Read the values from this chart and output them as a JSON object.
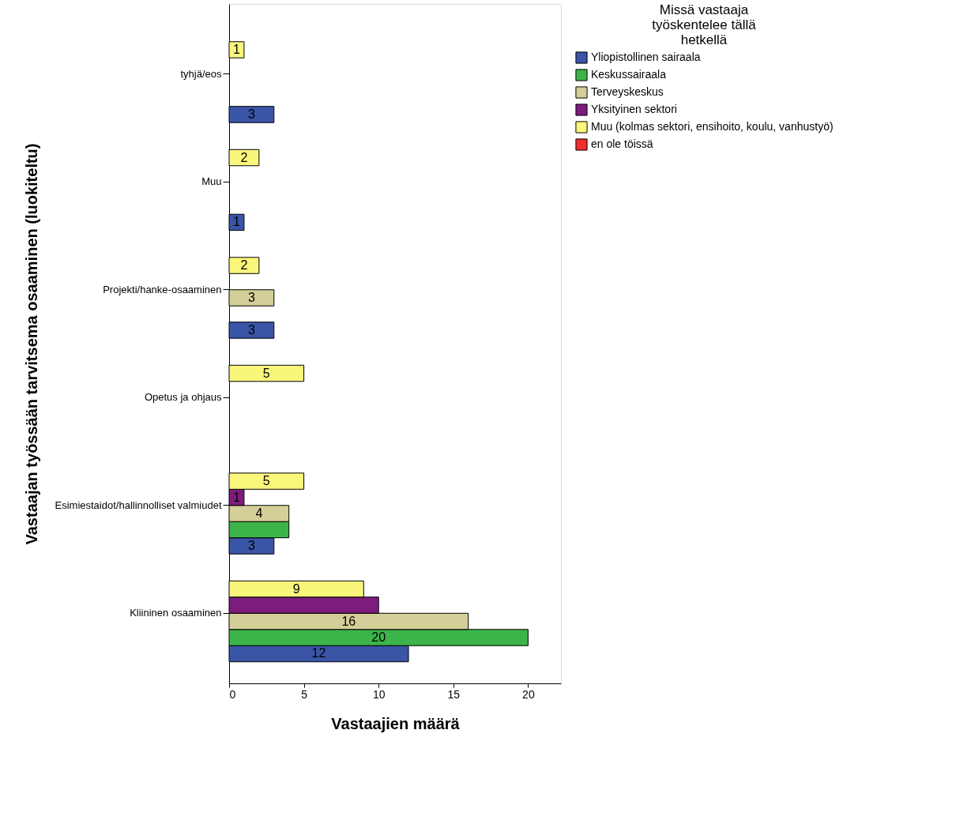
{
  "chart_data": {
    "type": "bar",
    "orientation": "horizontal",
    "xlabel": "Vastaajien määrä",
    "ylabel": "Vastaajan työssään tarvitsema osaaminen (luokiteltu)",
    "legend_title": "Missä vastaaja työskentelee tällä hetkellä",
    "legend": "right",
    "categories": [
      "tyhjä/eos",
      "Muu",
      "Projekti/hanke-osaaminen",
      "Opetus ja ohjaus",
      "Esimiestaidot/hallinnolliset valmiudet",
      "Kliininen osaaminen"
    ],
    "series": [
      {
        "name": "Yliopistollinen sairaala",
        "color": "#3a54a6",
        "values": [
          3,
          1,
          3,
          null,
          3,
          12
        ],
        "value_labels": [
          "3",
          "1",
          "3",
          null,
          "3",
          "12"
        ]
      },
      {
        "name": "Keskussairaala",
        "color": "#3cb44a",
        "values": [
          null,
          null,
          null,
          null,
          4,
          20
        ],
        "value_labels": [
          null,
          null,
          null,
          null,
          null,
          "20"
        ]
      },
      {
        "name": "Terveyskeskus",
        "color": "#d4cf98",
        "values": [
          null,
          null,
          3,
          null,
          4,
          16
        ],
        "value_labels": [
          null,
          null,
          "3",
          null,
          "4",
          "16"
        ]
      },
      {
        "name": "Yksityinen sektori",
        "color": "#7d1c7d",
        "values": [
          null,
          null,
          null,
          null,
          1,
          10
        ],
        "value_labels": [
          null,
          null,
          null,
          null,
          "1",
          null
        ]
      },
      {
        "name": "Muu (kolmas sektori, ensihoito, koulu, vanhustyö)",
        "color": "#faf67c",
        "values": [
          1,
          2,
          2,
          5,
          5,
          9
        ],
        "value_labels": [
          "1",
          "2",
          "2",
          "5",
          "5",
          "9"
        ]
      },
      {
        "name": "en ole töissä",
        "color": "#ee2d2d",
        "values": [
          null,
          null,
          null,
          null,
          null,
          null
        ]
      }
    ],
    "xlim": [
      0,
      22.2
    ],
    "xticks": [
      0,
      5,
      10,
      15,
      20
    ],
    "grid": false
  }
}
